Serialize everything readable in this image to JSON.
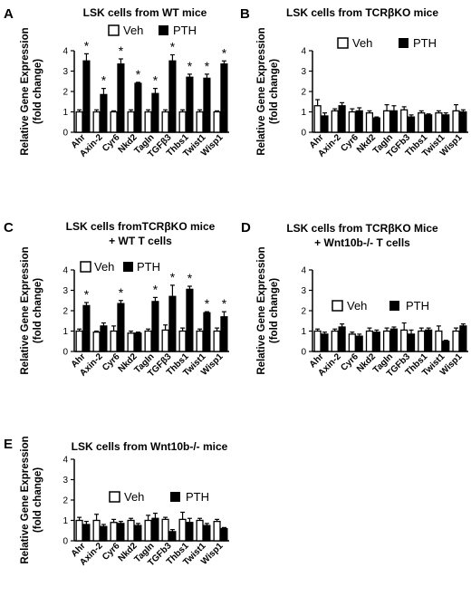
{
  "legend_labels": {
    "veh": "Veh",
    "pth": "PTH"
  },
  "colors": {
    "veh": "#ffffff",
    "pth": "#000000",
    "axis": "#000000"
  },
  "chart_data": [
    {
      "panel": "A",
      "type": "bar",
      "title": "LSK cells from WT mice",
      "ylabel": "Relative Gene Expression (fold change)",
      "ylim": [
        0,
        4
      ],
      "yticks": [
        0,
        1,
        2,
        3,
        4
      ],
      "legend": "top-center",
      "categories": [
        "Ahr",
        "Axin-2",
        "Cyr6",
        "Nkd2",
        "Tagln",
        "TGFβ3",
        "Thbs1",
        "Twist1",
        "Wisp1"
      ],
      "series": [
        {
          "name": "Veh",
          "values": [
            1.0,
            1.0,
            1.0,
            1.0,
            1.0,
            1.0,
            1.0,
            1.0,
            1.0
          ],
          "errors": [
            0.1,
            0.1,
            0.05,
            0.1,
            0.1,
            0.1,
            0.1,
            0.1,
            0.05
          ]
        },
        {
          "name": "PTH",
          "values": [
            3.5,
            1.85,
            3.35,
            2.4,
            1.9,
            3.5,
            2.7,
            2.65,
            3.35
          ],
          "errors": [
            0.35,
            0.3,
            0.25,
            0.05,
            0.25,
            0.3,
            0.15,
            0.2,
            0.15
          ]
        }
      ],
      "significance": [
        "*",
        "*",
        "*",
        "*",
        "*",
        "*",
        "*",
        "*",
        "*"
      ]
    },
    {
      "panel": "B",
      "type": "bar",
      "title": "LSK cells from TCRβKO mice",
      "ylabel": "Relative Gene Expression (fold change)",
      "ylim": [
        0,
        4
      ],
      "yticks": [
        0,
        1,
        2,
        3,
        4
      ],
      "legend": "top-center",
      "categories": [
        "Ahr",
        "Axin-2",
        "Cyr6",
        "Nkd2",
        "Tagln",
        "TGFb3",
        "Thbs1",
        "Twist1",
        "Wisp1"
      ],
      "series": [
        {
          "name": "Veh",
          "values": [
            1.3,
            1.05,
            1.0,
            0.95,
            1.05,
            1.1,
            0.95,
            0.95,
            1.05
          ],
          "errors": [
            0.3,
            0.1,
            0.15,
            0.1,
            0.3,
            0.15,
            0.1,
            0.1,
            0.3
          ]
        },
        {
          "name": "PTH",
          "values": [
            0.8,
            1.3,
            1.05,
            0.7,
            1.05,
            0.75,
            0.85,
            0.85,
            1.0
          ],
          "errors": [
            0.15,
            0.15,
            0.15,
            0.05,
            0.25,
            0.1,
            0.05,
            0.1,
            0.1
          ]
        }
      ],
      "significance": []
    },
    {
      "panel": "C",
      "type": "bar",
      "title": "LSK cells fromTCRβKO mice\n+ WT T cells",
      "ylabel": "Relative Gene Expression (fold change)",
      "ylim": [
        0,
        4
      ],
      "yticks": [
        0,
        1,
        2,
        3,
        4
      ],
      "legend": "top-left",
      "categories": [
        "Ahr",
        "Axin-2",
        "Cyr6",
        "Nkd2",
        "Tagln",
        "TGFβ3",
        "Thbs1",
        "Twist1",
        "Wisp1"
      ],
      "series": [
        {
          "name": "Veh",
          "values": [
            1.0,
            0.95,
            1.0,
            0.9,
            1.0,
            1.05,
            1.0,
            1.0,
            1.0
          ],
          "errors": [
            0.1,
            0.05,
            0.25,
            0.1,
            0.1,
            0.25,
            0.15,
            0.1,
            0.15
          ]
        },
        {
          "name": "PTH",
          "values": [
            2.25,
            1.25,
            2.35,
            0.9,
            2.45,
            2.7,
            3.05,
            1.9,
            1.7
          ],
          "errors": [
            0.15,
            0.15,
            0.15,
            0.05,
            0.2,
            0.55,
            0.15,
            0.05,
            0.25
          ]
        }
      ],
      "significance": [
        "*",
        "",
        "*",
        "",
        "*",
        "*",
        "*",
        "*",
        "*"
      ]
    },
    {
      "panel": "D",
      "type": "bar",
      "title": "LSK cells from TCRβKO Mice\n+ Wnt10b-/- T cells",
      "ylabel": "Relative Gene Expression (fold change)",
      "ylim": [
        0,
        4
      ],
      "yticks": [
        0,
        1,
        2,
        3,
        4
      ],
      "legend": "middle-center",
      "categories": [
        "Ahr",
        "Axin-2",
        "Cyr6",
        "Nkd2",
        "Tagln",
        "TGFb3",
        "Thbs1",
        "Twist1",
        "Wisp1"
      ],
      "series": [
        {
          "name": "Veh",
          "values": [
            1.0,
            1.0,
            0.85,
            1.0,
            1.0,
            1.05,
            1.0,
            1.0,
            1.0
          ],
          "errors": [
            0.1,
            0.1,
            0.1,
            0.15,
            0.15,
            0.35,
            0.15,
            0.25,
            0.15
          ]
        },
        {
          "name": "PTH",
          "values": [
            0.85,
            1.2,
            0.75,
            0.95,
            1.1,
            0.85,
            1.05,
            0.5,
            1.25
          ],
          "errors": [
            0.1,
            0.15,
            0.1,
            0.1,
            0.1,
            0.2,
            0.1,
            0.05,
            0.1
          ]
        }
      ],
      "significance": []
    },
    {
      "panel": "E",
      "type": "bar",
      "title": "LSK cells from Wnt10b-/- mice",
      "ylabel": "Relative Gene Expression (fold change)",
      "ylim": [
        0,
        4
      ],
      "yticks": [
        0,
        1,
        2,
        3,
        4
      ],
      "legend": "top-center",
      "categories": [
        "Ahr",
        "Axin-2",
        "Cyr6",
        "Nkd2",
        "Tagln",
        "TGFb3",
        "Thbs1",
        "Twist1",
        "Wisp1"
      ],
      "series": [
        {
          "name": "Veh",
          "values": [
            1.0,
            1.0,
            0.9,
            1.0,
            1.0,
            1.05,
            1.05,
            1.0,
            0.95
          ],
          "errors": [
            0.15,
            0.3,
            0.15,
            0.1,
            0.25,
            0.1,
            0.35,
            0.1,
            0.1
          ]
        },
        {
          "name": "PTH",
          "values": [
            0.8,
            0.7,
            0.85,
            0.75,
            1.1,
            0.45,
            0.9,
            0.75,
            0.6
          ],
          "errors": [
            0.15,
            0.1,
            0.1,
            0.1,
            0.25,
            0.1,
            0.2,
            0.1,
            0.05
          ]
        }
      ],
      "significance": []
    }
  ]
}
